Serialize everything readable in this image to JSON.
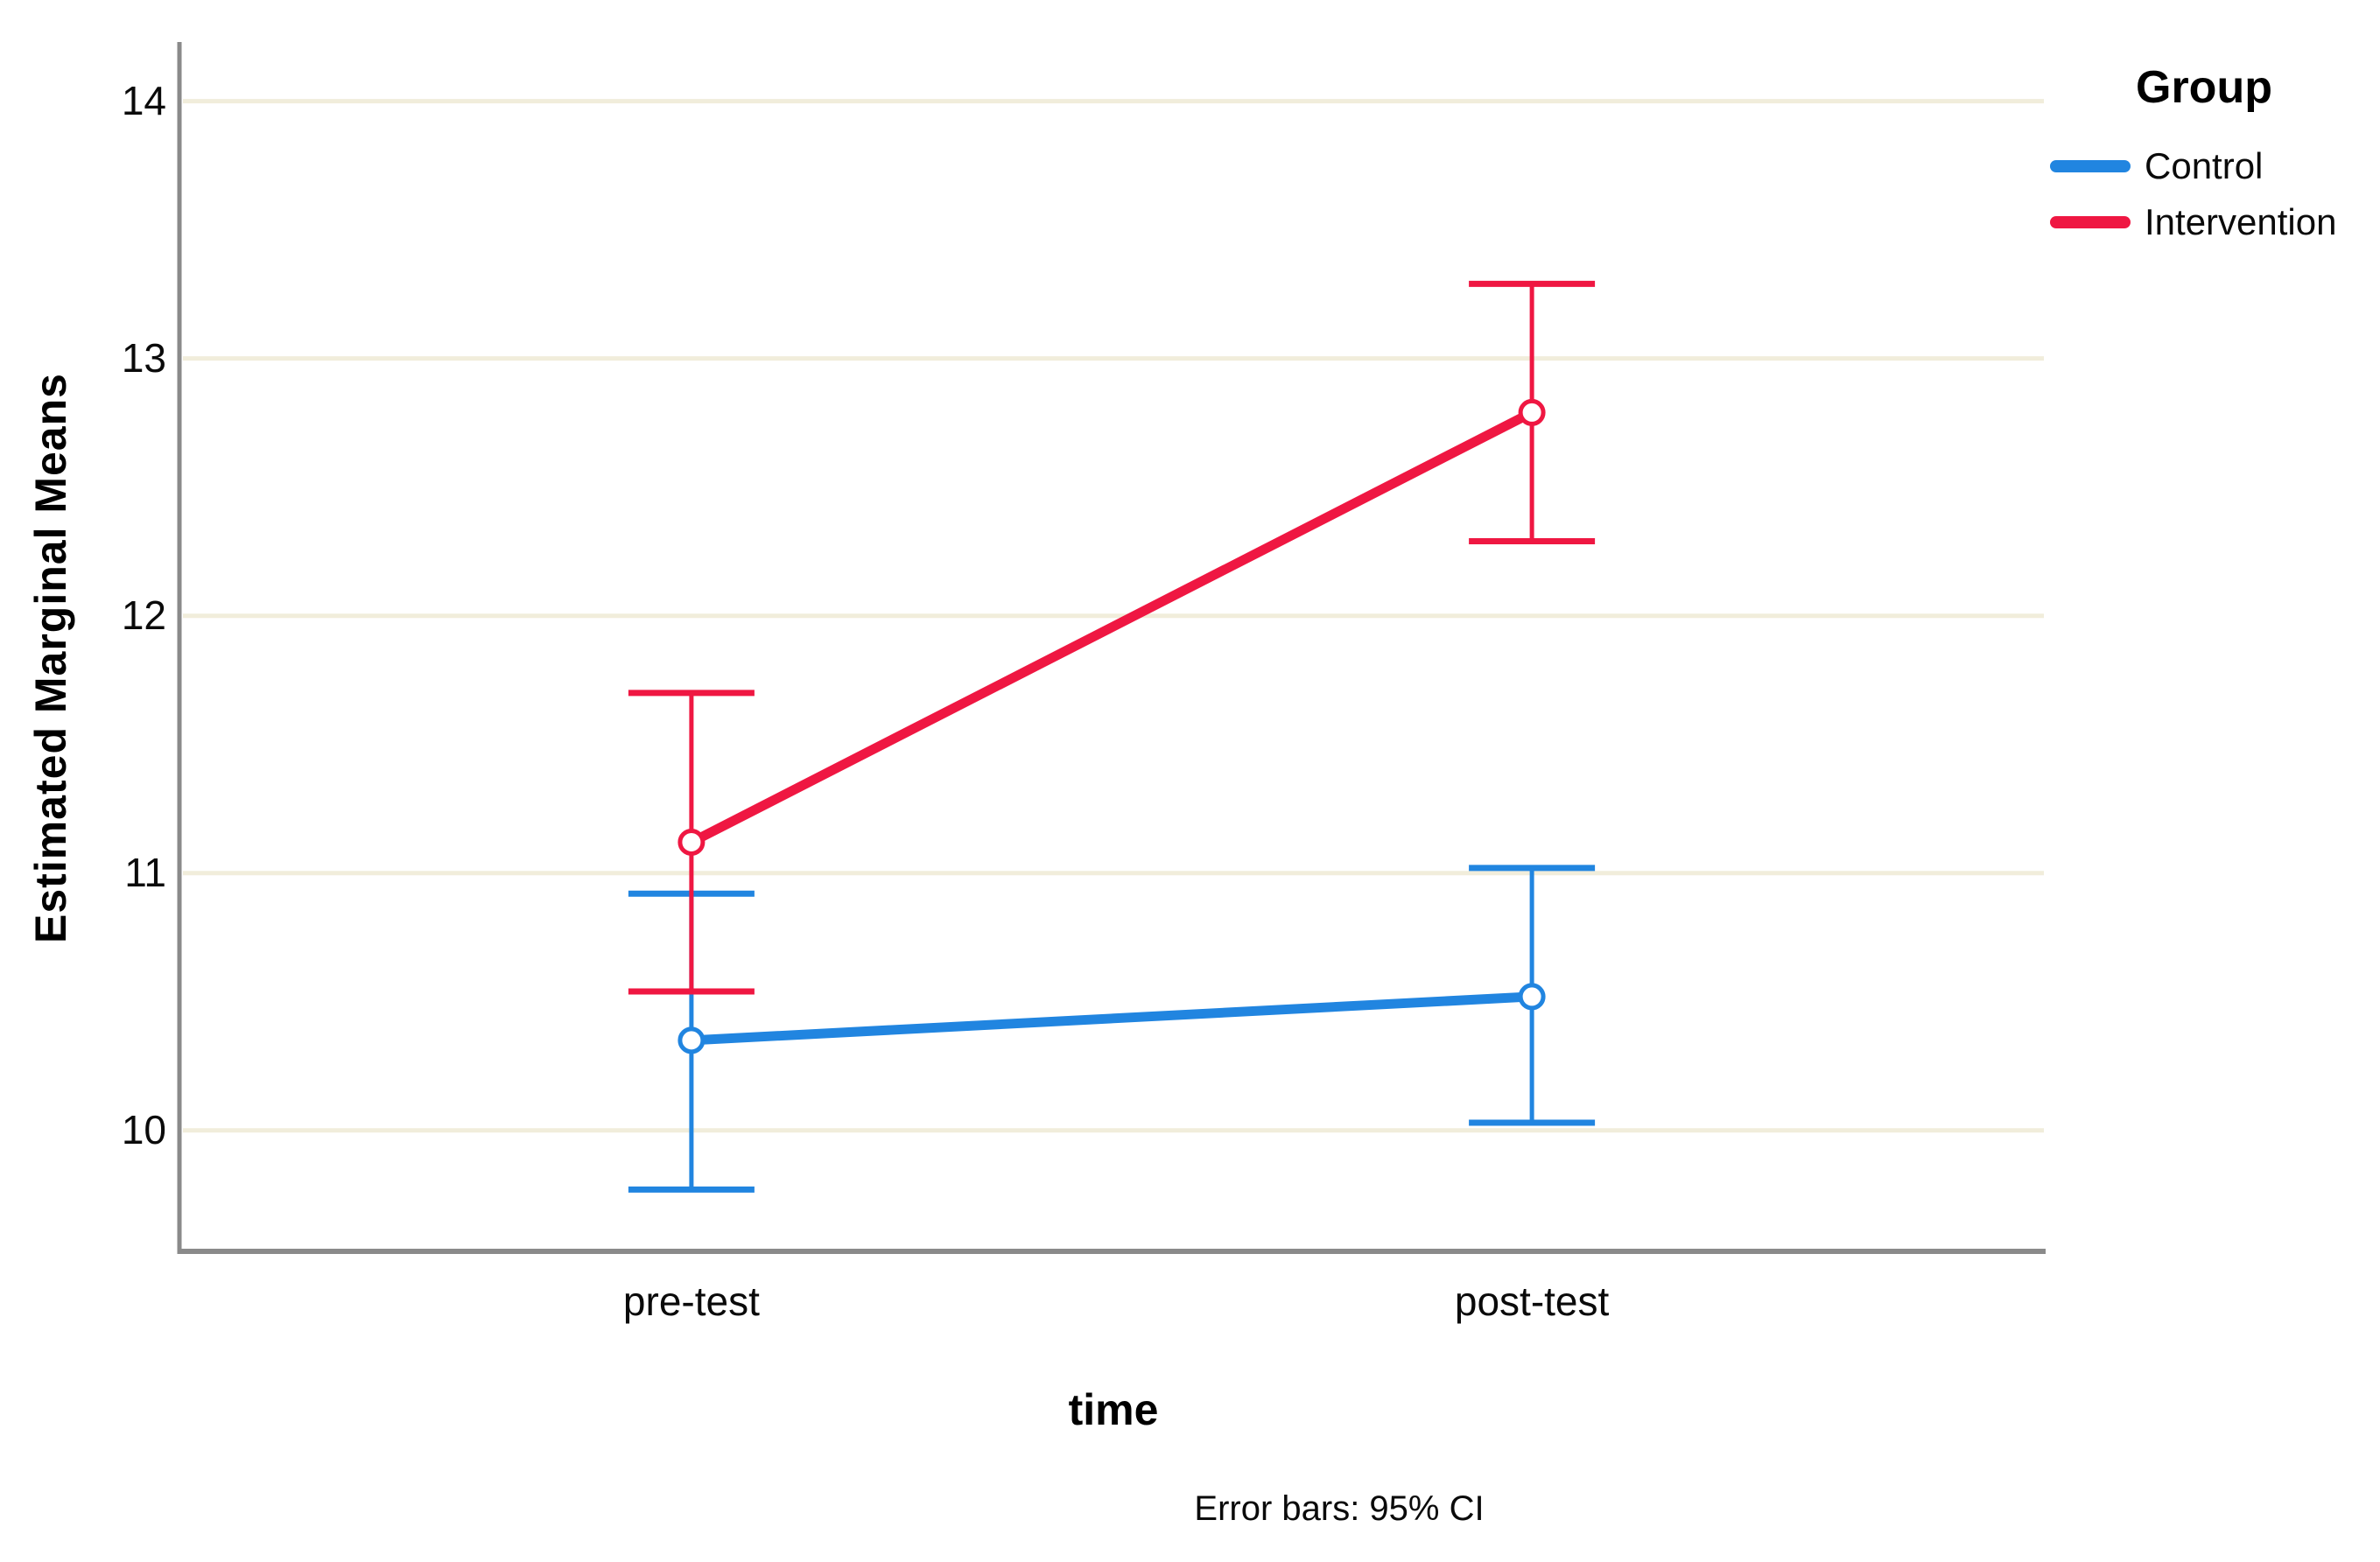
{
  "chart_data": {
    "type": "line",
    "title": "",
    "xlabel": "time",
    "ylabel": "Estimated Marginal Means",
    "footnote": "Error bars: 95% CI",
    "categories": [
      "pre-test",
      "post-test"
    ],
    "yticks": [
      10,
      11,
      12,
      13,
      14
    ],
    "ylim": [
      9.53,
      14.23
    ],
    "grid": "horizontal",
    "marker": "open-circle",
    "error_bars": "95% CI",
    "legend": {
      "title": "Group",
      "position": "top-right"
    },
    "series": [
      {
        "name": "Control",
        "color": "#2185E0",
        "values": [
          10.35,
          10.52
        ],
        "ci_lower": [
          9.77,
          10.03
        ],
        "ci_upper": [
          10.92,
          11.02
        ]
      },
      {
        "name": "Intervention",
        "color": "#EF1742",
        "values": [
          11.12,
          12.79
        ],
        "ci_lower": [
          10.54,
          12.29
        ],
        "ci_upper": [
          11.7,
          13.29
        ]
      }
    ]
  },
  "colors": {
    "gridline": "#F1EDDB",
    "axis": "#8A8A8A",
    "background": "#FFFFFF"
  }
}
